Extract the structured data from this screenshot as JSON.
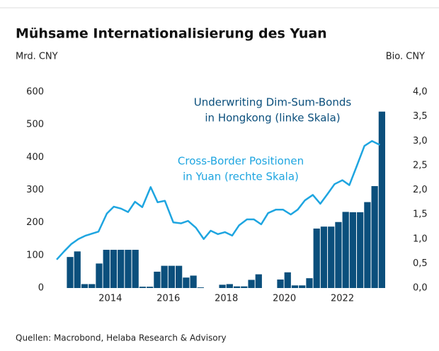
{
  "chart_data": {
    "type": "bar-line",
    "title": "Mühsame Internationalisierung des Yuan",
    "y_label": "Mrd. CNY",
    "y2_label": "Bio. CNY",
    "source": "Quellen: Macrobond, Helaba Research & Advisory",
    "xlim": [
      2012.1,
      2023.5
    ],
    "xticks": [
      2014,
      2016,
      2018,
      2020,
      2022
    ],
    "ylim": [
      0,
      600
    ],
    "yticks": [
      0,
      100,
      200,
      300,
      400,
      500,
      600
    ],
    "y2lim": [
      0,
      4
    ],
    "y2ticks": [
      {
        "value": 0,
        "label": "0,0"
      },
      {
        "value": 0.5,
        "label": "0,5"
      },
      {
        "value": 1,
        "label": "1,0"
      },
      {
        "value": 1.5,
        "label": "1,5"
      },
      {
        "value": 2,
        "label": "2,0"
      },
      {
        "value": 2.5,
        "label": "2,5"
      },
      {
        "value": 3,
        "label": "3,0"
      },
      {
        "value": 3.5,
        "label": "3,5"
      },
      {
        "value": 4,
        "label": "4,0"
      }
    ],
    "series": [
      {
        "name": "Underwriting Dim-Sum-Bonds in Hongkong (linke Skala)",
        "type": "bar",
        "color": "#0b4f7c",
        "annotation": [
          "Underwriting Dim-Sum-Bonds",
          "in Hongkong (linke Skala)"
        ],
        "x": [
          2012.5,
          2012.75,
          2013,
          2013.25,
          2013.5,
          2013.75,
          2014,
          2014.25,
          2014.5,
          2014.75,
          2015,
          2015.25,
          2015.5,
          2015.75,
          2016,
          2016.25,
          2016.5,
          2016.75,
          2017,
          2017.25,
          2017.5,
          2017.75,
          2018,
          2018.25,
          2018.5,
          2018.75,
          2019,
          2019.25,
          2019.5,
          2019.75,
          2020,
          2020.25,
          2020.5,
          2020.75,
          2021,
          2021.25,
          2021.5,
          2021.75,
          2022,
          2022.25,
          2022.5,
          2022.75,
          2023,
          2023.25
        ],
        "values": [
          95,
          112,
          12,
          12,
          75,
          117,
          117,
          117,
          117,
          117,
          4,
          4,
          50,
          68,
          68,
          68,
          32,
          38,
          2,
          0,
          0,
          10,
          12,
          5,
          5,
          25,
          42,
          0,
          0,
          26,
          48,
          8,
          8,
          30,
          182,
          188,
          188,
          202,
          233,
          232,
          232,
          263,
          312,
          540
        ]
      },
      {
        "name": "Cross-Border Positionen in Yuan (rechte Skala)",
        "type": "line",
        "axis": "y2",
        "color": "#1ea5e0",
        "annotation": [
          "Cross-Border Positionen",
          "in Yuan (rechte Skala)"
        ],
        "x": [
          2012.15,
          2012.41,
          2012.66,
          2012.9,
          2013.15,
          2013.59,
          2013.88,
          2014.12,
          2014.37,
          2014.61,
          2014.85,
          2015.1,
          2015.39,
          2015.63,
          2015.88,
          2016.17,
          2016.44,
          2016.68,
          2016.95,
          2017.22,
          2017.46,
          2017.71,
          2017.95,
          2018.2,
          2018.44,
          2018.71,
          2018.95,
          2019.2,
          2019.44,
          2019.71,
          2019.95,
          2020.22,
          2020.46,
          2020.71,
          2020.98,
          2021.24,
          2021.49,
          2021.73,
          2022.0,
          2022.24,
          2022.49,
          2022.76,
          2023.02,
          2023.29
        ],
        "values": [
          0.58,
          0.75,
          0.9,
          1.0,
          1.07,
          1.15,
          1.52,
          1.66,
          1.62,
          1.55,
          1.76,
          1.65,
          2.06,
          1.75,
          1.78,
          1.34,
          1.32,
          1.37,
          1.23,
          1.0,
          1.17,
          1.1,
          1.14,
          1.07,
          1.28,
          1.4,
          1.4,
          1.3,
          1.53,
          1.6,
          1.6,
          1.5,
          1.6,
          1.79,
          1.9,
          1.72,
          1.92,
          2.12,
          2.2,
          2.1,
          2.48,
          2.9,
          3.0,
          2.92
        ]
      }
    ]
  }
}
